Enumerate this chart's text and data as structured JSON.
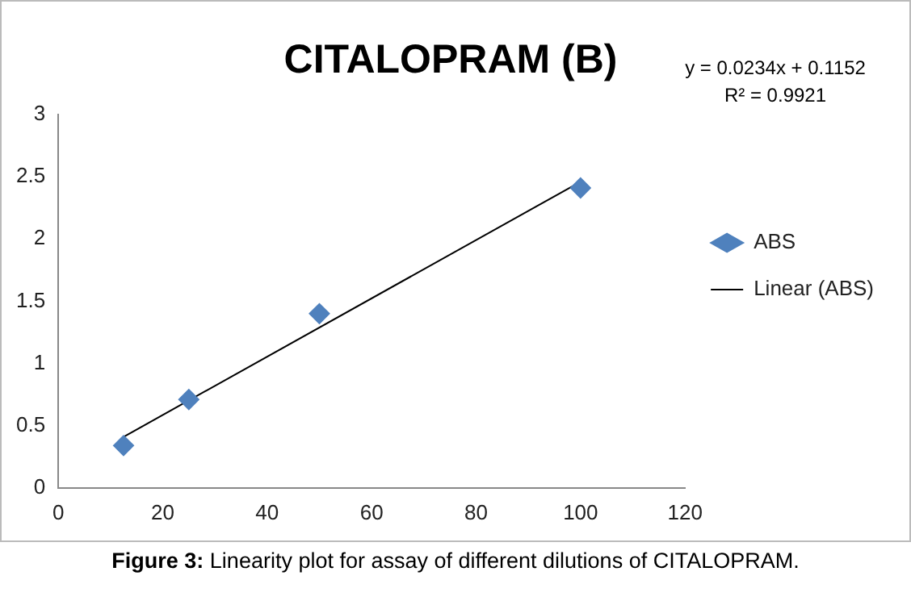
{
  "chart_data": {
    "type": "scatter",
    "title": "CITALOPRAM (B)",
    "x": [
      12.5,
      25,
      50,
      100
    ],
    "series": [
      {
        "name": "ABS",
        "type": "scatter",
        "color": "#4f81bd",
        "values": [
          0.34,
          0.71,
          1.4,
          2.41
        ],
        "marker": "diamond"
      },
      {
        "name": "Linear (ABS)",
        "type": "line",
        "color": "#000000",
        "x": [
          12.5,
          100
        ],
        "values": [
          0.41,
          2.46
        ],
        "marker": "none",
        "line_style": "solid"
      }
    ],
    "xlim": [
      0,
      120
    ],
    "xticks": [
      0,
      20,
      40,
      60,
      80,
      100,
      120
    ],
    "ylim": [
      0,
      3
    ],
    "yticks": [
      0,
      0.5,
      1,
      1.5,
      2,
      2.5,
      3
    ],
    "grid": false,
    "legend": "right",
    "annotations": [
      "y = 0.0234x + 0.1152",
      "R² = 0.9921",
      "Figure 3: Linearity plot for assay of different dilutions of CITALOPRAM."
    ]
  }
}
